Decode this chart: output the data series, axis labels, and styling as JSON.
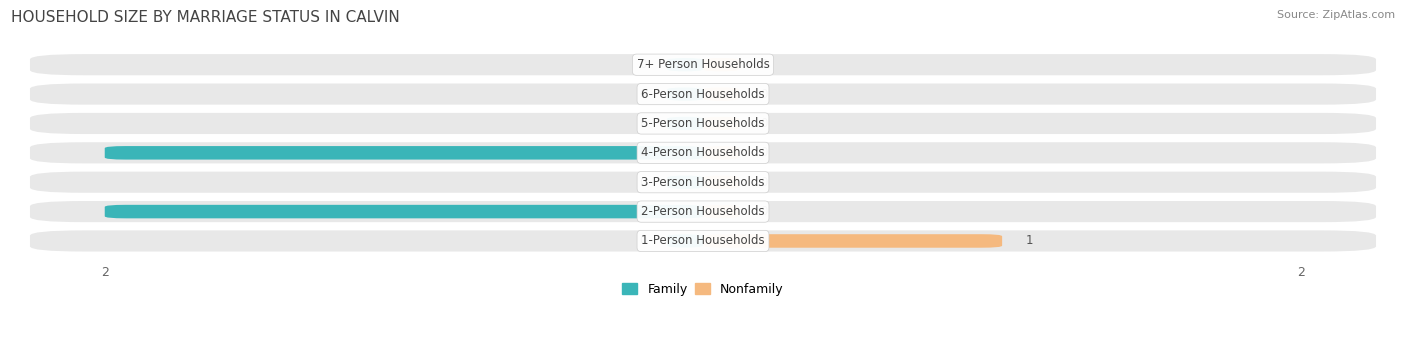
{
  "title": "HOUSEHOLD SIZE BY MARRIAGE STATUS IN CALVIN",
  "source": "Source: ZipAtlas.com",
  "categories": [
    "7+ Person Households",
    "6-Person Households",
    "5-Person Households",
    "4-Person Households",
    "3-Person Households",
    "2-Person Households",
    "1-Person Households"
  ],
  "family_values": [
    0,
    0,
    0,
    2,
    0,
    2,
    0
  ],
  "nonfamily_values": [
    0,
    0,
    0,
    0,
    0,
    0,
    1
  ],
  "family_color": "#3ab5b8",
  "nonfamily_color": "#f5b97f",
  "xlim": [
    -2.3,
    2.3
  ],
  "bar_row_bg": "#e8e8e8",
  "title_fontsize": 11,
  "label_fontsize": 8.5,
  "axis_label_fontsize": 9,
  "source_fontsize": 8,
  "stub_size": 0.12
}
